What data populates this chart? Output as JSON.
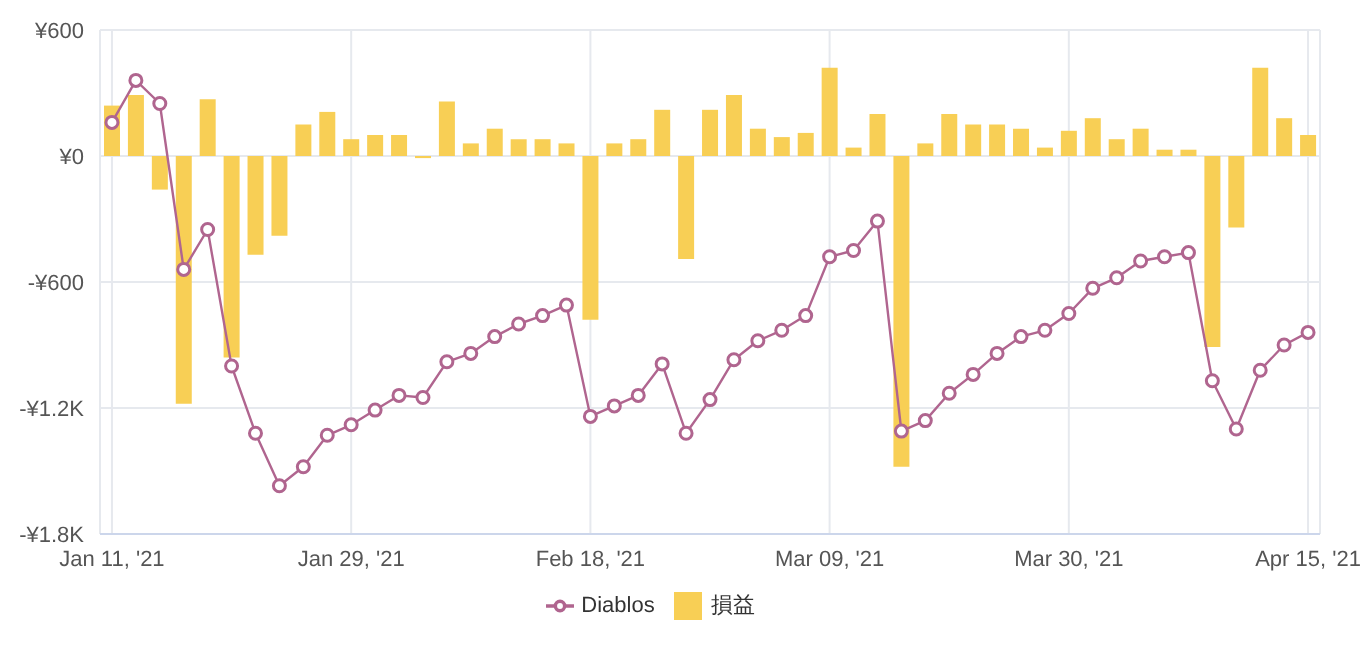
{
  "chart_data": {
    "type": "bar",
    "categories": [
      "Jan 11, '21",
      null,
      null,
      null,
      null,
      null,
      null,
      null,
      null,
      null,
      "Jan 29, '21",
      null,
      null,
      null,
      null,
      null,
      null,
      null,
      null,
      null,
      "Feb 18, '21",
      null,
      null,
      null,
      null,
      null,
      null,
      null,
      null,
      null,
      "Mar 09, '21",
      null,
      null,
      null,
      null,
      null,
      null,
      null,
      null,
      null,
      "Mar 30, '21",
      null,
      null,
      null,
      null,
      null,
      null,
      null,
      null,
      null,
      "Apr 15, '21"
    ],
    "series": [
      {
        "name": "損益",
        "color": "#f8cf55",
        "values": [
          240,
          290,
          -160,
          -1180,
          270,
          -960,
          -470,
          -380,
          150,
          210,
          80,
          100,
          100,
          -10,
          260,
          60,
          130,
          80,
          80,
          60,
          -780,
          60,
          80,
          220,
          -490,
          220,
          290,
          130,
          90,
          110,
          420,
          40,
          200,
          -1480,
          60,
          200,
          150,
          150,
          130,
          40,
          120,
          180,
          80,
          130,
          30,
          30,
          -910,
          -340,
          420,
          180,
          100
        ]
      },
      {
        "name": "Diablos",
        "type": "line",
        "color": "#b0658f",
        "values": [
          160,
          360,
          250,
          -540,
          -350,
          -1000,
          -1320,
          -1570,
          -1480,
          -1330,
          -1280,
          -1210,
          -1140,
          -1150,
          -980,
          -940,
          -860,
          -800,
          -760,
          -710,
          -1240,
          -1190,
          -1140,
          -990,
          -1320,
          -1160,
          -970,
          -880,
          -830,
          -760,
          -480,
          -450,
          -310,
          -1310,
          -1260,
          -1130,
          -1040,
          -940,
          -860,
          -830,
          -750,
          -630,
          -580,
          -500,
          -480,
          -460,
          -1070,
          -1300,
          -1020,
          -900,
          -840
        ]
      }
    ],
    "ylim": [
      -1800,
      600
    ],
    "yticks": [
      {
        "value": -1800,
        "label": "-¥1.8K"
      },
      {
        "value": -1200,
        "label": "-¥1.2K"
      },
      {
        "value": -600,
        "label": "-¥600"
      },
      {
        "value": 0,
        "label": "¥0"
      },
      {
        "value": 600,
        "label": "¥600"
      }
    ],
    "grid": true,
    "legend": "bottom",
    "marker": "circle"
  }
}
